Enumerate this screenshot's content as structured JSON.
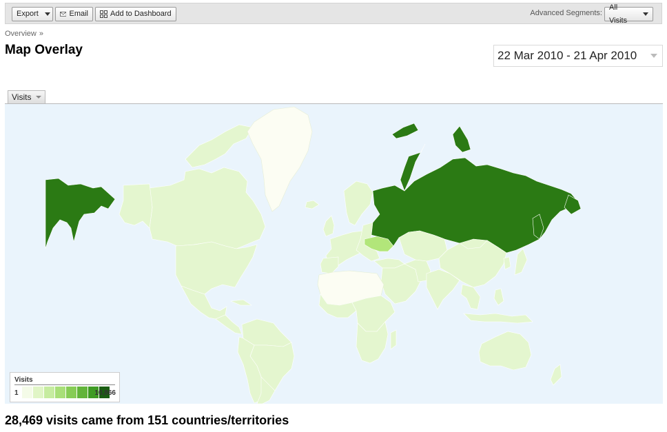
{
  "toolbar": {
    "export_label": "Export",
    "email_label": "Email",
    "dashboard_label": "Add to Dashboard",
    "segments_label": "Advanced Segments:",
    "segments_value": "All Visits"
  },
  "breadcrumb": {
    "item": "Overview",
    "separator": "»"
  },
  "page_title": "Map Overlay",
  "date_range": "22 Mar 2010 - 21 Apr 2010",
  "metric_tab": "Visits",
  "map": {
    "legend": {
      "title": "Visits",
      "min": "1",
      "max": "10,866"
    },
    "colors": {
      "ocean": "#eaf4fc",
      "scale": [
        "#f4fbe8",
        "#e0f5c6",
        "#c6eca0",
        "#a8df78",
        "#86cc55",
        "#62b43a",
        "#3f9b24",
        "#28801a",
        "#1a5d12"
      ],
      "no_data": "#fcfdf3",
      "low": "#e4f6cf",
      "mid": "#c8ee9c",
      "high": "#2b7a14",
      "ukraine": "#b2e67a"
    }
  },
  "summary": "28,469 visits came from 151 countries/territories"
}
